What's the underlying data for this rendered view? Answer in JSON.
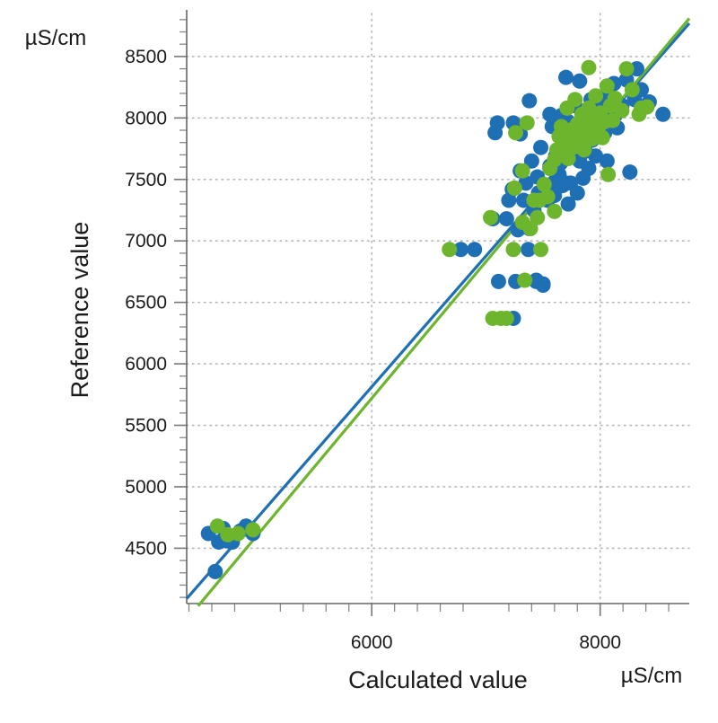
{
  "chart_data": {
    "type": "scatter",
    "title": "",
    "xlabel": "Calculated value",
    "ylabel": "Reference value",
    "x_unit": "µS/cm",
    "y_unit": "µS/cm",
    "xlim": [
      4380,
      8780
    ],
    "ylim": [
      4050,
      8850
    ],
    "x_ticks": [
      6000,
      8000
    ],
    "y_ticks": [
      4500,
      5000,
      5500,
      6000,
      6500,
      7000,
      7500,
      8000,
      8500
    ],
    "grid": true,
    "legend": "none",
    "colors": {
      "series_1": "#1f6fb5",
      "series_2": "#6cb52d"
    },
    "series": [
      {
        "color": "#1f6fb5",
        "fit_line": {
          "x": [
            4380,
            8780
          ],
          "y": [
            4090,
            8770
          ]
        },
        "points": [
          [
            4570,
            4620
          ],
          [
            4660,
            4550
          ],
          [
            4700,
            4660
          ],
          [
            4730,
            4560
          ],
          [
            4780,
            4550
          ],
          [
            4850,
            4640
          ],
          [
            4900,
            4680
          ],
          [
            4960,
            4620
          ],
          [
            4630,
            4310
          ],
          [
            6780,
            6930
          ],
          [
            6900,
            6930
          ],
          [
            7060,
            7180
          ],
          [
            7080,
            7880
          ],
          [
            7100,
            7960
          ],
          [
            7110,
            6670
          ],
          [
            7180,
            7180
          ],
          [
            7200,
            7330
          ],
          [
            7230,
            7420
          ],
          [
            7240,
            7960
          ],
          [
            7240,
            6370
          ],
          [
            7260,
            6670
          ],
          [
            7280,
            7090
          ],
          [
            7300,
            7570
          ],
          [
            7300,
            7870
          ],
          [
            7330,
            7330
          ],
          [
            7350,
            7470
          ],
          [
            7370,
            6930
          ],
          [
            7380,
            8140
          ],
          [
            7380,
            7100
          ],
          [
            7400,
            7650
          ],
          [
            7420,
            7250
          ],
          [
            7440,
            6670
          ],
          [
            7440,
            6680
          ],
          [
            7450,
            7520
          ],
          [
            7460,
            7390
          ],
          [
            7480,
            7760
          ],
          [
            7500,
            6640
          ],
          [
            7500,
            6650
          ],
          [
            7520,
            7440
          ],
          [
            7540,
            7330
          ],
          [
            7560,
            7590
          ],
          [
            7560,
            8030
          ],
          [
            7560,
            7610
          ],
          [
            7580,
            7930
          ],
          [
            7600,
            7480
          ],
          [
            7600,
            7370
          ],
          [
            7610,
            7690
          ],
          [
            7620,
            7950
          ],
          [
            7640,
            7540
          ],
          [
            7650,
            7630
          ],
          [
            7660,
            8020
          ],
          [
            7670,
            7450
          ],
          [
            7680,
            7880
          ],
          [
            7690,
            7740
          ],
          [
            7700,
            7470
          ],
          [
            7700,
            8330
          ],
          [
            7720,
            7300
          ],
          [
            7720,
            7970
          ],
          [
            7740,
            7840
          ],
          [
            7740,
            7470
          ],
          [
            7760,
            7690
          ],
          [
            7780,
            8100
          ],
          [
            7800,
            7390
          ],
          [
            7800,
            7850
          ],
          [
            7820,
            7650
          ],
          [
            7820,
            8300
          ],
          [
            7840,
            7970
          ],
          [
            7850,
            7510
          ],
          [
            7870,
            7730
          ],
          [
            7880,
            8060
          ],
          [
            7890,
            7900
          ],
          [
            7900,
            7590
          ],
          [
            7920,
            8150
          ],
          [
            7930,
            7820
          ],
          [
            7940,
            7980
          ],
          [
            7960,
            7690
          ],
          [
            7970,
            8030
          ],
          [
            7980,
            7920
          ],
          [
            8000,
            7850
          ],
          [
            8020,
            8100
          ],
          [
            8030,
            7990
          ],
          [
            8040,
            7880
          ],
          [
            8060,
            7650
          ],
          [
            8070,
            8190
          ],
          [
            8100,
            8060
          ],
          [
            8120,
            8280
          ],
          [
            8130,
            8020
          ],
          [
            8150,
            7920
          ],
          [
            8190,
            8100
          ],
          [
            8230,
            8310
          ],
          [
            8260,
            7560
          ],
          [
            8300,
            8150
          ],
          [
            8320,
            8400
          ],
          [
            8360,
            8230
          ],
          [
            8430,
            8130
          ],
          [
            8550,
            8030
          ]
        ]
      },
      {
        "color": "#6cb52d",
        "fit_line": {
          "x": [
            4480,
            8780
          ],
          "y": [
            4030,
            8810
          ]
        },
        "points": [
          [
            4650,
            4680
          ],
          [
            4740,
            4610
          ],
          [
            4830,
            4620
          ],
          [
            4960,
            4650
          ],
          [
            6680,
            6930
          ],
          [
            7040,
            7190
          ],
          [
            7060,
            6370
          ],
          [
            7130,
            6370
          ],
          [
            7180,
            6370
          ],
          [
            7240,
            6930
          ],
          [
            7250,
            7430
          ],
          [
            7260,
            7880
          ],
          [
            7320,
            7570
          ],
          [
            7320,
            7150
          ],
          [
            7340,
            6680
          ],
          [
            7360,
            7960
          ],
          [
            7390,
            7100
          ],
          [
            7420,
            7330
          ],
          [
            7450,
            7190
          ],
          [
            7470,
            7330
          ],
          [
            7480,
            6930
          ],
          [
            7510,
            7460
          ],
          [
            7540,
            7360
          ],
          [
            7560,
            7590
          ],
          [
            7600,
            7240
          ],
          [
            7600,
            7660
          ],
          [
            7620,
            7740
          ],
          [
            7640,
            7850
          ],
          [
            7660,
            7930
          ],
          [
            7680,
            7700
          ],
          [
            7700,
            7800
          ],
          [
            7710,
            8080
          ],
          [
            7720,
            7670
          ],
          [
            7740,
            7900
          ],
          [
            7760,
            7760
          ],
          [
            7780,
            8150
          ],
          [
            7800,
            7950
          ],
          [
            7820,
            7850
          ],
          [
            7840,
            8030
          ],
          [
            7860,
            7740
          ],
          [
            7880,
            7920
          ],
          [
            7900,
            8410
          ],
          [
            7900,
            8080
          ],
          [
            7930,
            7830
          ],
          [
            7950,
            7980
          ],
          [
            7960,
            8180
          ],
          [
            7980,
            7900
          ],
          [
            8000,
            8040
          ],
          [
            8020,
            7840
          ],
          [
            8040,
            7970
          ],
          [
            8060,
            8260
          ],
          [
            8070,
            7540
          ],
          [
            8090,
            8100
          ],
          [
            8110,
            7980
          ],
          [
            8130,
            8160
          ],
          [
            8190,
            8060
          ],
          [
            8230,
            8400
          ],
          [
            8280,
            8230
          ],
          [
            8340,
            8030
          ],
          [
            8360,
            8080
          ],
          [
            8410,
            8090
          ]
        ]
      }
    ]
  }
}
